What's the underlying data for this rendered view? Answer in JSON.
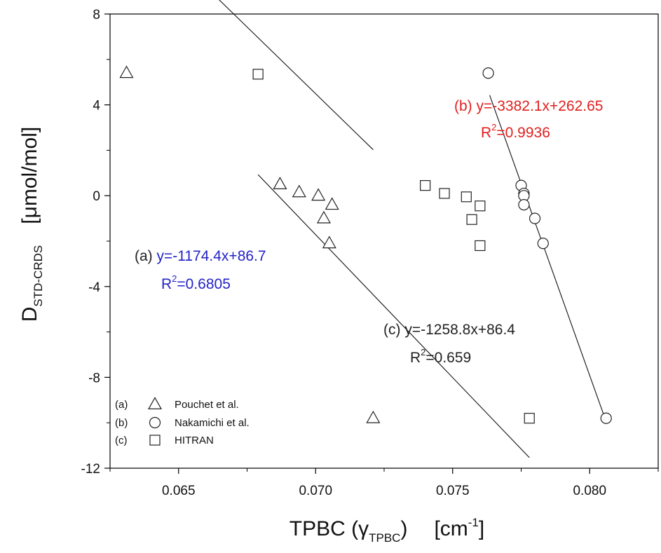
{
  "chart_data": {
    "type": "scatter",
    "xlim": [
      0.0625,
      0.0825
    ],
    "ylim": [
      -12,
      8
    ],
    "x_ticks": [
      {
        "value": 0.065,
        "label": "0.065"
      },
      {
        "value": 0.07,
        "label": "0.070"
      },
      {
        "value": 0.075,
        "label": "0.075"
      },
      {
        "value": 0.08,
        "label": "0.080"
      }
    ],
    "y_ticks": [
      {
        "value": 8,
        "label": "8"
      },
      {
        "value": 4,
        "label": "4"
      },
      {
        "value": 0,
        "label": "0"
      },
      {
        "value": -4,
        "label": "-4"
      },
      {
        "value": -8,
        "label": "-8"
      },
      {
        "value": -12,
        "label": "-12"
      }
    ],
    "xlabel": {
      "main": "TPBC (",
      "greek": "γ",
      "sub": "TPBC",
      "close": ")",
      "unit_open": "[cm",
      "unit_sup": "-1",
      "unit_close": "]"
    },
    "ylabel": {
      "main": "D",
      "sub": "STD-CRDS",
      "unit": "[μmol/mol]"
    },
    "series": [
      {
        "key": "a",
        "tag": "(a)",
        "name": "Pouchet et al.",
        "marker": "triangle",
        "points": [
          [
            0.0631,
            5.4
          ],
          [
            0.0687,
            0.5
          ],
          [
            0.0694,
            0.15
          ],
          [
            0.0701,
            0.0
          ],
          [
            0.0703,
            -1.0
          ],
          [
            0.0705,
            -2.1
          ],
          [
            0.0706,
            -0.4
          ],
          [
            0.0721,
            -9.8
          ]
        ],
        "fit": {
          "slope": -1174.4,
          "intercept": 86.7,
          "x_range": [
            0.0631,
            0.0721
          ]
        },
        "annotation": {
          "prefix": "(a) ",
          "equation": "y=-1174.4x+86.7",
          "r2_label": "R",
          "r2_sup": "2",
          "r2_value": "=0.6805",
          "color": "#2323c8",
          "prefix_color": "#222222"
        }
      },
      {
        "key": "b",
        "tag": "(b)",
        "name": "Nakamichi et al.",
        "marker": "circle",
        "points": [
          [
            0.0763,
            5.4
          ],
          [
            0.0775,
            0.45
          ],
          [
            0.0776,
            0.1
          ],
          [
            0.0776,
            0.0
          ],
          [
            0.0776,
            -0.4
          ],
          [
            0.078,
            -1.0
          ],
          [
            0.0783,
            -2.1
          ],
          [
            0.0806,
            -9.8
          ]
        ],
        "fit": {
          "slope": -3382.1,
          "intercept": 262.65,
          "x_range": [
            0.07635,
            0.0806
          ]
        },
        "annotation": {
          "prefix": "(b) ",
          "equation": "y=-3382.1x+262.65",
          "r2_label": "R",
          "r2_sup": "2",
          "r2_value": "=0.9936",
          "color": "#e0201e",
          "prefix_color": "#e0201e"
        }
      },
      {
        "key": "c",
        "tag": "(c)",
        "name": "HITRAN",
        "marker": "square",
        "points": [
          [
            0.0679,
            5.35
          ],
          [
            0.074,
            0.45
          ],
          [
            0.0747,
            0.1
          ],
          [
            0.0755,
            -0.05
          ],
          [
            0.0757,
            -1.05
          ],
          [
            0.076,
            -0.45
          ],
          [
            0.076,
            -2.2
          ],
          [
            0.0778,
            -9.8
          ]
        ],
        "fit": {
          "slope": -1258.8,
          "intercept": 86.4,
          "x_range": [
            0.0679,
            0.0778
          ]
        },
        "annotation": {
          "prefix": "(c) ",
          "equation": "y=-1258.8x+86.4",
          "r2_label": "R",
          "r2_sup": "2",
          "r2_value": "=0.659",
          "color": "#222222",
          "prefix_color": "#222222"
        }
      }
    ],
    "legend_position": "bottom-left",
    "grid": false
  }
}
